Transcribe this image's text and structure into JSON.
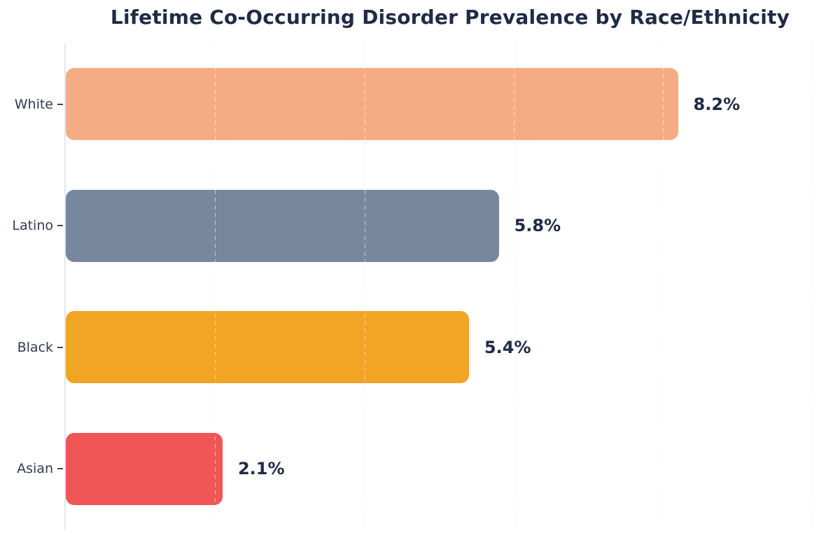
{
  "chart_data": {
    "type": "bar",
    "orientation": "horizontal",
    "title": "Lifetime Co-Occurring Disorder Prevalence by Race/Ethnicity",
    "categories": [
      "White",
      "Latino",
      "Black",
      "Asian"
    ],
    "values": [
      8.2,
      5.8,
      5.4,
      2.1
    ],
    "value_labels": [
      "8.2%",
      "5.8%",
      "5.4%",
      "2.1%"
    ],
    "bar_colors": [
      "#F5AC84",
      "#76879E",
      "#F2A424",
      "#F05656"
    ],
    "xlabel": "",
    "ylabel": "",
    "xlim": [
      0,
      10.37
    ],
    "gridlines_x": [
      2,
      4,
      6,
      8,
      10
    ],
    "grid": true,
    "legend": false
  },
  "style": {
    "title_color": "#212B45",
    "value_label_color": "#212B45",
    "category_label_color": "#2F3A52",
    "tick_color": "#3C4660",
    "axis_line_color": "#E3E6EE",
    "gridline_color": "#E9EBF2",
    "gridline_over_bar_color": "rgba(255,255,255,0.55)",
    "background_color": "#FFFFFF"
  }
}
